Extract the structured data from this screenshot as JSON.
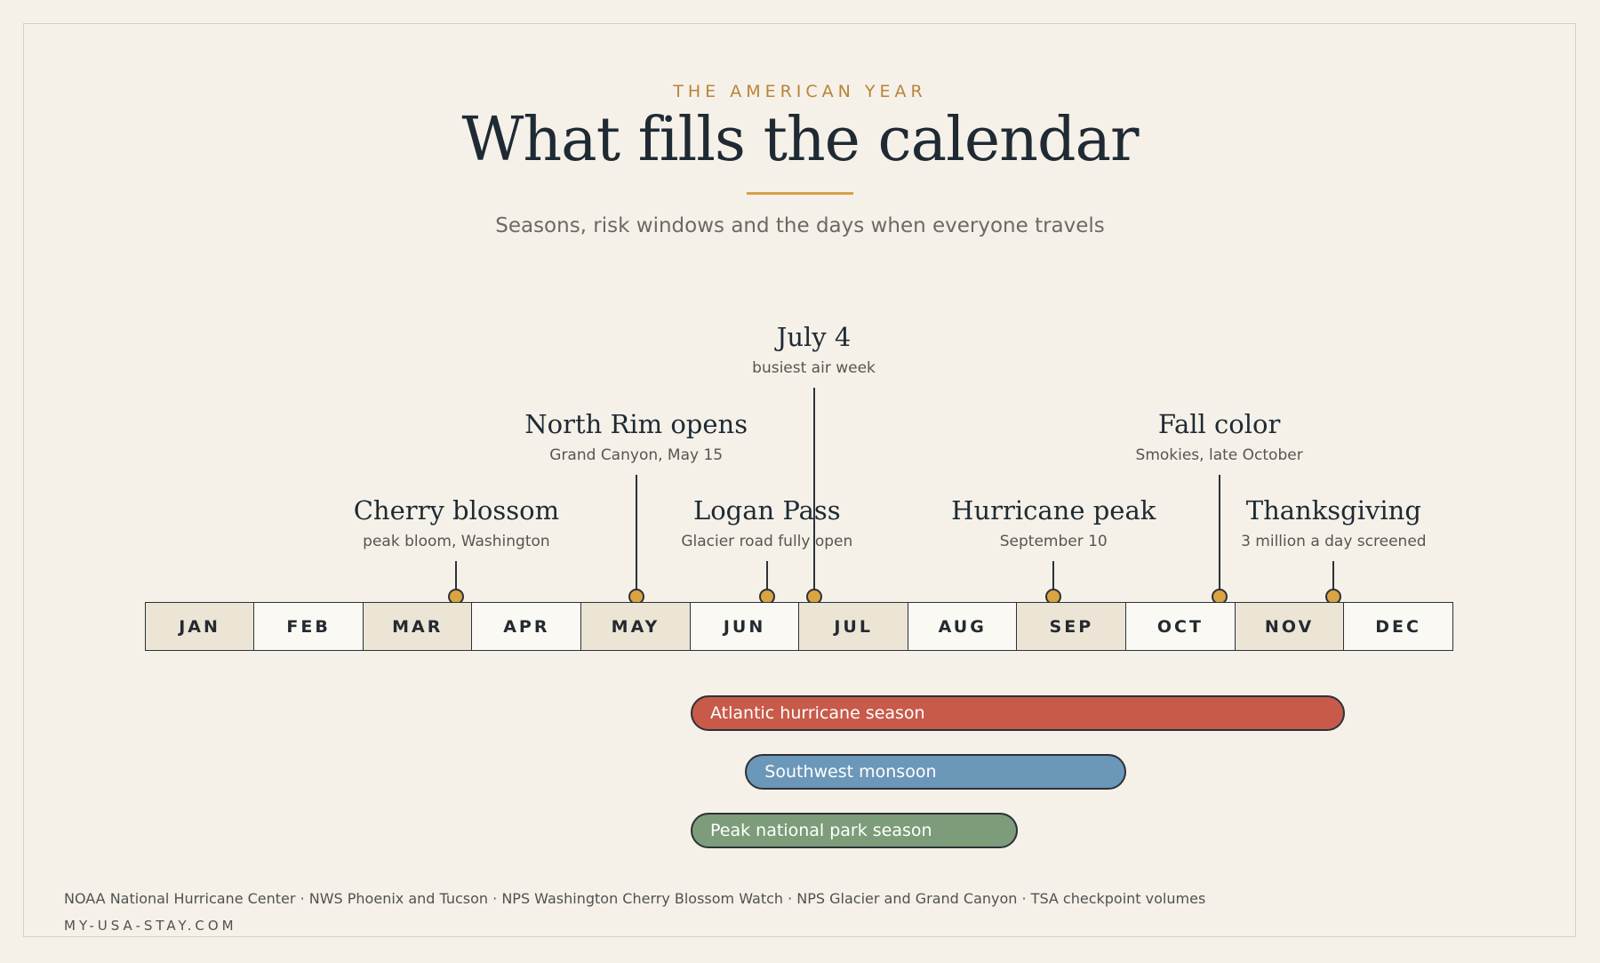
{
  "header": {
    "kicker": "THE AMERICAN YEAR",
    "title": "What fills the calendar",
    "subtitle": "Seasons, risk windows and the days when everyone travels"
  },
  "months": [
    "JAN",
    "FEB",
    "MAR",
    "APR",
    "MAY",
    "JUN",
    "JUL",
    "AUG",
    "SEP",
    "OCT",
    "NOV",
    "DEC"
  ],
  "shaded_months": [
    "JAN",
    "MAR",
    "MAY",
    "JUL",
    "SEP",
    "NOV"
  ],
  "events": [
    {
      "title": "Cherry blossom",
      "subtitle": "peak bloom, Washington",
      "month_position": 2.85,
      "tier": 1
    },
    {
      "title": "North Rim opens",
      "subtitle": "Grand Canyon, May 15",
      "month_position": 4.5,
      "tier": 2
    },
    {
      "title": "Logan Pass",
      "subtitle": "Glacier road fully open",
      "month_position": 5.7,
      "tier": 1
    },
    {
      "title": "July 4",
      "subtitle": "busiest air week",
      "month_position": 6.13,
      "tier": 3
    },
    {
      "title": "Hurricane peak",
      "subtitle": "September 10",
      "month_position": 8.33,
      "tier": 1
    },
    {
      "title": "Fall color",
      "subtitle": "Smokies, late October",
      "month_position": 9.85,
      "tier": 2
    },
    {
      "title": "Thanksgiving",
      "subtitle": "3 million a day screened",
      "month_position": 10.9,
      "tier": 1
    }
  ],
  "bands": [
    {
      "label": "Atlantic hurricane season",
      "start_month": 5.0,
      "end_month": 11.0,
      "color": "#c85a4a"
    },
    {
      "label": "Southwest monsoon",
      "start_month": 5.5,
      "end_month": 9.0,
      "color": "#6b97b8"
    },
    {
      "label": "Peak national park season",
      "start_month": 5.0,
      "end_month": 8.0,
      "color": "#7d9c7a"
    }
  ],
  "footer": {
    "sources": "NOAA National Hurricane Center · NWS Phoenix and Tucson · NPS Washington Cherry Blossom Watch · NPS Glacier and Grand Canyon · TSA checkpoint volumes",
    "site": "MY-USA-STAY.COM"
  },
  "colors": {
    "accent": "#d6a14a",
    "kicker": "#b98338",
    "ink": "#1f2a33",
    "background": "#f5f1e9"
  }
}
